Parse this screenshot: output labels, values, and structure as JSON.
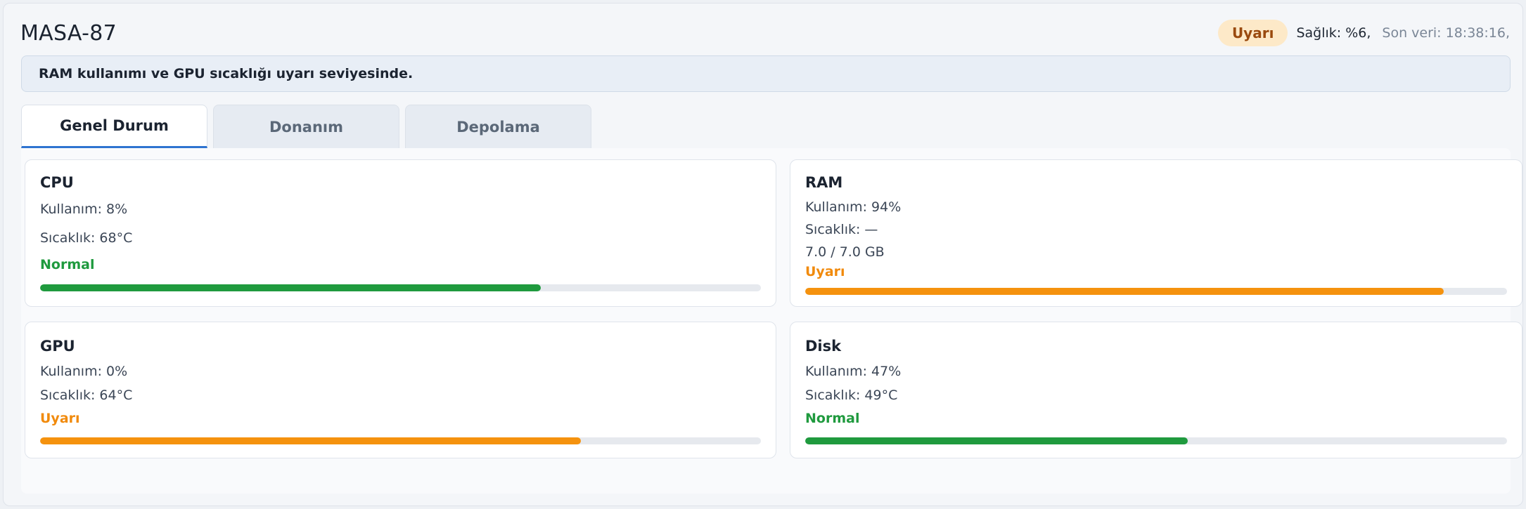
{
  "header": {
    "title": "MASA-87",
    "badge": "Uyarı",
    "health": "Sağlık: %6,",
    "last_data": "Son veri: 18:38:16,"
  },
  "alert": {
    "text": "RAM kullanımı ve GPU sıcaklığı uyarı seviyesinde."
  },
  "tabs": [
    {
      "label": "Genel Durum",
      "active": true
    },
    {
      "label": "Donanım",
      "active": false
    },
    {
      "label": "Depolama",
      "active": false
    }
  ],
  "cards": {
    "cpu": {
      "title": "CPU",
      "usage": "Kullanım: 8%",
      "temp": "Sıcaklık: 68°C",
      "status": "Normal",
      "level": 0.695
    },
    "ram": {
      "title": "RAM",
      "usage": "Kullanım: 94%",
      "temp": "Sıcaklık: —",
      "capacity": "7.0 / 7.0 GB",
      "status": "Uyarı",
      "level": 0.91
    },
    "gpu": {
      "title": "GPU",
      "usage": "Kullanım: 0%",
      "temp": "Sıcaklık: 64°C",
      "status": "Uyarı",
      "level": 0.75
    },
    "disk": {
      "title": "Disk",
      "usage": "Kullanım: 47%",
      "temp": "Sıcaklık: 49°C",
      "status": "Normal",
      "level": 0.545
    }
  },
  "colors": {
    "normal": "#1f9a3e",
    "warning": "#f5920e",
    "accent": "#2f74d0",
    "badge_bg": "#fde9c8"
  }
}
